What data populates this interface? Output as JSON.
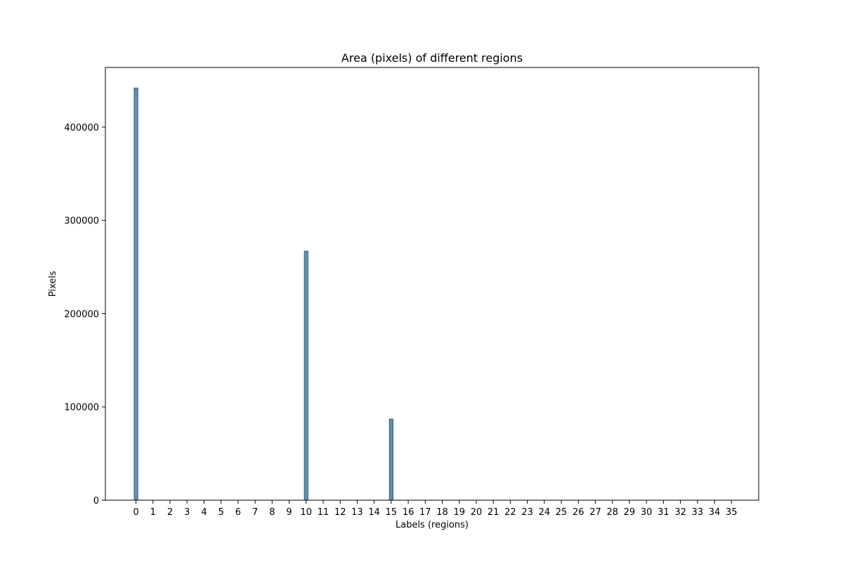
{
  "chart_data": {
    "type": "bar",
    "title": "Area (pixels) of different regions",
    "xlabel": "Labels (regions)",
    "ylabel": "Pixels",
    "x_ticks": [
      0,
      1,
      2,
      3,
      4,
      5,
      6,
      7,
      8,
      9,
      10,
      11,
      12,
      13,
      14,
      15,
      16,
      17,
      18,
      19,
      20,
      21,
      22,
      23,
      24,
      25,
      26,
      27,
      28,
      29,
      30,
      31,
      32,
      33,
      34,
      35
    ],
    "y_ticks": [
      0,
      100000,
      200000,
      300000,
      400000
    ],
    "xlim": [
      -1.8,
      36.6
    ],
    "ylim": [
      0,
      464000
    ],
    "bars": [
      {
        "x": 0,
        "value": 442000
      },
      {
        "x": 10,
        "value": 267000
      },
      {
        "x": 15,
        "value": 87000
      }
    ],
    "bar_width": 0.22,
    "grid": false,
    "colors": {
      "bar_fill": "#5f90b3",
      "bar_edge": "#2e4b60",
      "axis": "#000000"
    }
  }
}
